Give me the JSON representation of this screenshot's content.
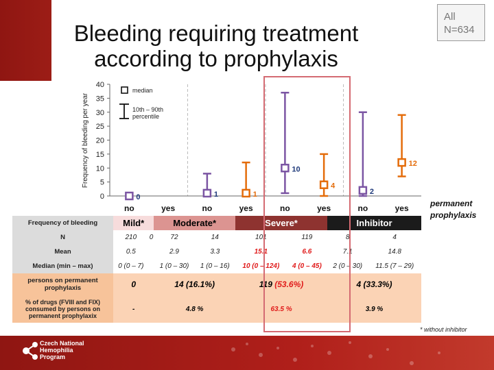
{
  "title_line1": "Bleeding requiring treatment",
  "title_line2": "according to prophylaxis",
  "badge": {
    "line1": "All",
    "line2": "N=634"
  },
  "legend": {
    "median": "median",
    "range_line1": "10th – 90th",
    "range_line2": "percentile"
  },
  "permanent_label": {
    "line1": "permanent",
    "line2": "prophylaxis"
  },
  "footnote": "* without inhibitor",
  "footer_logo": {
    "line1": "Czech National",
    "line2": "Hemophilia",
    "line3": "Program"
  },
  "colors": {
    "no": "#7b55a3",
    "yes": "#e46c0a",
    "median_label_no": "#1f3a7a",
    "median_label_yes": "#e46c0a"
  },
  "chart_data": {
    "type": "scatter",
    "ylabel": "Frequency of bleeding per year",
    "ylim": [
      0,
      40
    ],
    "yticks": [
      0,
      5,
      10,
      15,
      20,
      25,
      30,
      35,
      40
    ],
    "categories": [
      "no",
      "yes",
      "no",
      "yes",
      "no",
      "yes",
      "no",
      "yes"
    ],
    "category_labels": [
      "no",
      "yes",
      "no",
      "yes",
      "no",
      "yes",
      "no",
      "yes"
    ],
    "points": [
      {
        "group": "Mild*",
        "prophylaxis": "no",
        "median": 0,
        "p10": 0,
        "p90": 0,
        "label": "0"
      },
      {
        "group": "Mild*",
        "prophylaxis": "yes",
        "median": null,
        "p10": null,
        "p90": null,
        "label": ""
      },
      {
        "group": "Moderate*",
        "prophylaxis": "no",
        "median": 1,
        "p10": 0,
        "p90": 8,
        "label": "1"
      },
      {
        "group": "Moderate*",
        "prophylaxis": "yes",
        "median": 1,
        "p10": 0,
        "p90": 12,
        "label": "1"
      },
      {
        "group": "Severe*",
        "prophylaxis": "no",
        "median": 10,
        "p10": 1,
        "p90": 37,
        "label": "10"
      },
      {
        "group": "Severe*",
        "prophylaxis": "yes",
        "median": 4,
        "p10": 0,
        "p90": 15,
        "label": "4"
      },
      {
        "group": "Inhibitor",
        "prophylaxis": "no",
        "median": 2,
        "p10": 0,
        "p90": 30,
        "label": "2"
      },
      {
        "group": "Inhibitor",
        "prophylaxis": "yes",
        "median": 12,
        "p10": 7,
        "p90": 29,
        "label": "12"
      }
    ]
  },
  "table": {
    "header_label": "Frequency of bleeding",
    "groups": [
      "Mild*",
      "Moderate*",
      "Severe*",
      "Inhibitor"
    ],
    "rows": [
      {
        "label": "N",
        "values": [
          "210",
          "0",
          "72",
          "14",
          "101",
          "119",
          "8",
          "4"
        ]
      },
      {
        "label": "Mean",
        "values": [
          "0.5",
          "",
          "2.9",
          "3.3",
          "15.1",
          "6.6",
          "7.1",
          "14.8"
        ]
      },
      {
        "label": "Median (min – max)",
        "values": [
          "0 (0 – 7)",
          "",
          "1 (0 – 30)",
          "1 (0 – 16)",
          "10 (0 – 124)",
          "4 (0 – 45)",
          "2 (0 – 30)",
          "11.5 (7 – 29)"
        ]
      }
    ],
    "persons": {
      "label": "persons on permanent prophylaxis",
      "values": [
        "0",
        "14 (16.1%)",
        "119 ",
        "(53.6%)",
        "4 (33.3%)"
      ]
    },
    "drugs": {
      "label": "% of drugs (FVIII and FIX) consumed by persons on permanent prophylaxix",
      "values": [
        "-",
        "4.8 %",
        "63.5 %",
        "3.9 %"
      ]
    }
  }
}
